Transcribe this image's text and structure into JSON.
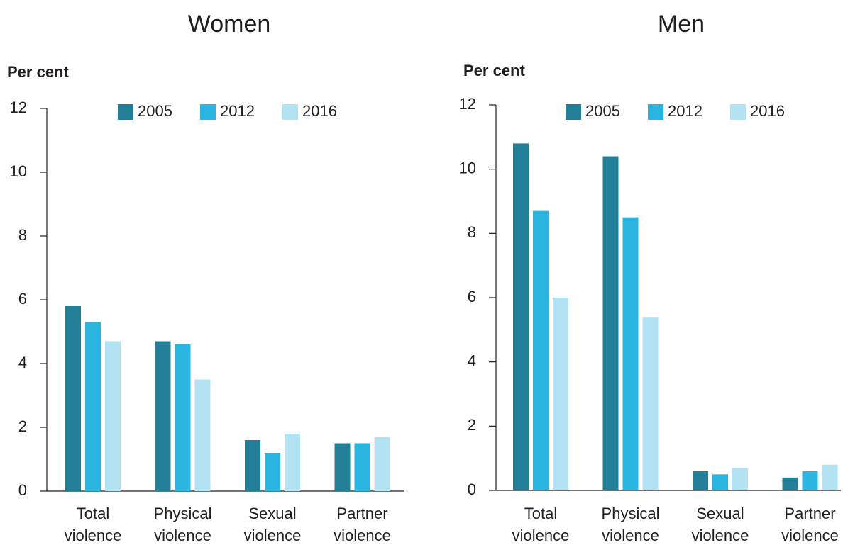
{
  "chart_data": [
    {
      "type": "bar",
      "title": "Women",
      "y_label": "Per cent",
      "categories": [
        "Total violence",
        "Physical violence",
        "Sexual violence",
        "Partner violence"
      ],
      "series": [
        {
          "name": "2005",
          "color": "#237f98",
          "values": [
            5.8,
            4.7,
            1.6,
            1.5
          ]
        },
        {
          "name": "2012",
          "color": "#29b5df",
          "values": [
            5.3,
            4.6,
            1.2,
            1.5
          ]
        },
        {
          "name": "2016",
          "color": "#b3e2f3",
          "values": [
            4.7,
            3.5,
            1.8,
            1.7
          ]
        }
      ],
      "ylim": [
        0,
        12
      ],
      "yticks": [
        0,
        2,
        4,
        6,
        8,
        10,
        12
      ],
      "grid": false,
      "legend": "top"
    },
    {
      "type": "bar",
      "title": "Men",
      "y_label": "Per cent",
      "categories": [
        "Total violence",
        "Physical violence",
        "Sexual violence",
        "Partner violence"
      ],
      "series": [
        {
          "name": "2005",
          "color": "#237f98",
          "values": [
            10.8,
            10.4,
            0.6,
            0.4
          ]
        },
        {
          "name": "2012",
          "color": "#29b5df",
          "values": [
            8.7,
            8.5,
            0.5,
            0.6
          ]
        },
        {
          "name": "2016",
          "color": "#b3e2f3",
          "values": [
            6.0,
            5.4,
            0.7,
            0.8
          ]
        }
      ],
      "ylim": [
        0,
        12
      ],
      "yticks": [
        0,
        2,
        4,
        6,
        8,
        10,
        12
      ],
      "grid": false,
      "legend": "top"
    }
  ]
}
